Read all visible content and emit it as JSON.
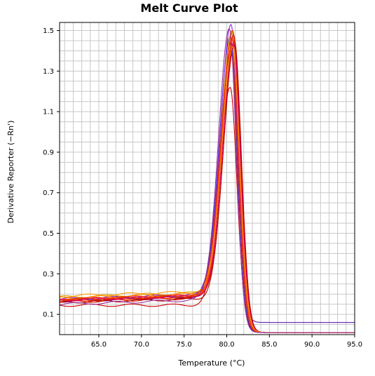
{
  "chart_data": {
    "type": "line",
    "title": "Melt Curve Plot",
    "xlabel": "Temperature (°C)",
    "ylabel": "Derivative Reporter (−Rn')",
    "xlim": [
      60.4,
      95.0
    ],
    "ylim": [
      0.0,
      1.54
    ],
    "x_ticks": [
      65.0,
      70.0,
      75.0,
      80.0,
      85.0,
      90.0,
      95.0
    ],
    "y_ticks": [
      0.1,
      0.3,
      0.5,
      0.7,
      0.9,
      1.1,
      1.3,
      1.5
    ],
    "x_tick_labels": [
      "65.0",
      "70.0",
      "75.0",
      "80.0",
      "85.0",
      "90.0",
      "95.0"
    ],
    "y_tick_labels": [
      "0.1",
      "0.3",
      "0.5",
      "0.7",
      "0.9",
      "1.1",
      "1.3",
      "1.5"
    ],
    "grid": true,
    "grid_minor_x_step": 1.0,
    "grid_minor_y_step": 0.05,
    "legend": "none",
    "series": [
      {
        "color": "#cc0000",
        "baseline": 0.145,
        "rise_start": 0.145,
        "peak_x": 80.4,
        "peak_y": 1.22,
        "tail": 0.01
      },
      {
        "color": "#5a1fb0",
        "baseline": 0.165,
        "rise_start": 0.185,
        "peak_x": 80.5,
        "peak_y": 1.44,
        "tail": 0.06
      },
      {
        "color": "#3322cc",
        "baseline": 0.17,
        "rise_start": 0.19,
        "peak_x": 80.4,
        "peak_y": 1.47,
        "tail": 0.01
      },
      {
        "color": "#8a2be2",
        "baseline": 0.175,
        "rise_start": 0.195,
        "peak_x": 80.5,
        "peak_y": 1.53,
        "tail": 0.01
      },
      {
        "color": "#e0a000",
        "baseline": 0.185,
        "rise_start": 0.205,
        "peak_x": 80.6,
        "peak_y": 1.5,
        "tail": 0.01
      },
      {
        "color": "#ff8800",
        "baseline": 0.18,
        "rise_start": 0.2,
        "peak_x": 80.7,
        "peak_y": 1.49,
        "tail": 0.01
      },
      {
        "color": "#ff6600",
        "baseline": 0.175,
        "rise_start": 0.195,
        "peak_x": 80.8,
        "peak_y": 1.47,
        "tail": 0.01
      },
      {
        "color": "#ee4400",
        "baseline": 0.17,
        "rise_start": 0.19,
        "peak_x": 80.7,
        "peak_y": 1.5,
        "tail": 0.01
      },
      {
        "color": "#dd2200",
        "baseline": 0.165,
        "rise_start": 0.185,
        "peak_x": 80.9,
        "peak_y": 1.45,
        "tail": 0.01
      },
      {
        "color": "#cc1100",
        "baseline": 0.16,
        "rise_start": 0.18,
        "peak_x": 80.8,
        "peak_y": 1.48,
        "tail": 0.01
      },
      {
        "color": "#ff3300",
        "baseline": 0.168,
        "rise_start": 0.188,
        "peak_x": 80.6,
        "peak_y": 1.46,
        "tail": 0.01
      },
      {
        "color": "#b00000",
        "baseline": 0.16,
        "rise_start": 0.175,
        "peak_x": 80.9,
        "peak_y": 1.43,
        "tail": 0.01
      },
      {
        "color": "#d9006c",
        "baseline": 0.17,
        "rise_start": 0.19,
        "peak_x": 80.8,
        "peak_y": 1.44,
        "tail": 0.01
      },
      {
        "color": "#ff9900",
        "baseline": 0.19,
        "rise_start": 0.21,
        "peak_x": 80.7,
        "peak_y": 1.42,
        "tail": 0.01
      },
      {
        "color": "#e03000",
        "baseline": 0.172,
        "rise_start": 0.192,
        "peak_x": 80.5,
        "peak_y": 1.4,
        "tail": 0.01
      },
      {
        "color": "#993399",
        "baseline": 0.15,
        "rise_start": 0.17,
        "peak_x": 80.3,
        "peak_y": 1.51,
        "tail": 0.01
      }
    ]
  }
}
